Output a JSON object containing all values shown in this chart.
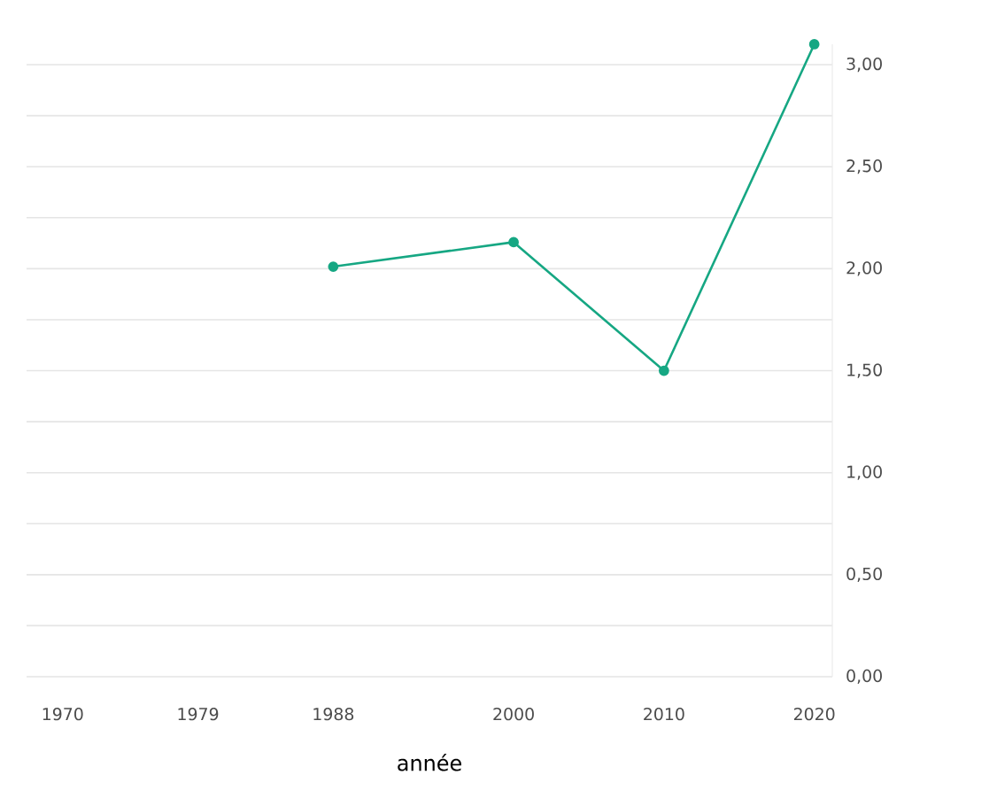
{
  "chart_data": {
    "type": "line",
    "xlabel": "année",
    "x": [
      1988,
      2000,
      2010,
      2020
    ],
    "series": [
      {
        "color": "#16a783",
        "values": [
          2.01,
          2.13,
          1.5,
          3.1
        ]
      }
    ],
    "xlim": [
      1967.6,
      2021.2
    ],
    "xticks": [
      1970,
      1979,
      1988,
      2000,
      2010,
      2020
    ],
    "ylim": [
      0,
      3.1
    ],
    "yticks": [
      {
        "value": 0,
        "label": "0,00"
      },
      {
        "value": 0.25,
        "label": null
      },
      {
        "value": 0.5,
        "label": "0,50"
      },
      {
        "value": 0.75,
        "label": null
      },
      {
        "value": 1,
        "label": "1,00"
      },
      {
        "value": 1.25,
        "label": null
      },
      {
        "value": 1.5,
        "label": "1,50"
      },
      {
        "value": 1.75,
        "label": null
      },
      {
        "value": 2,
        "label": "2,00"
      },
      {
        "value": 2.25,
        "label": null
      },
      {
        "value": 2.5,
        "label": "2,50"
      },
      {
        "value": 2.75,
        "label": null
      },
      {
        "value": 3,
        "label": "3,00"
      }
    ],
    "grid": "y",
    "marker": "circle",
    "line_style": "solid"
  }
}
